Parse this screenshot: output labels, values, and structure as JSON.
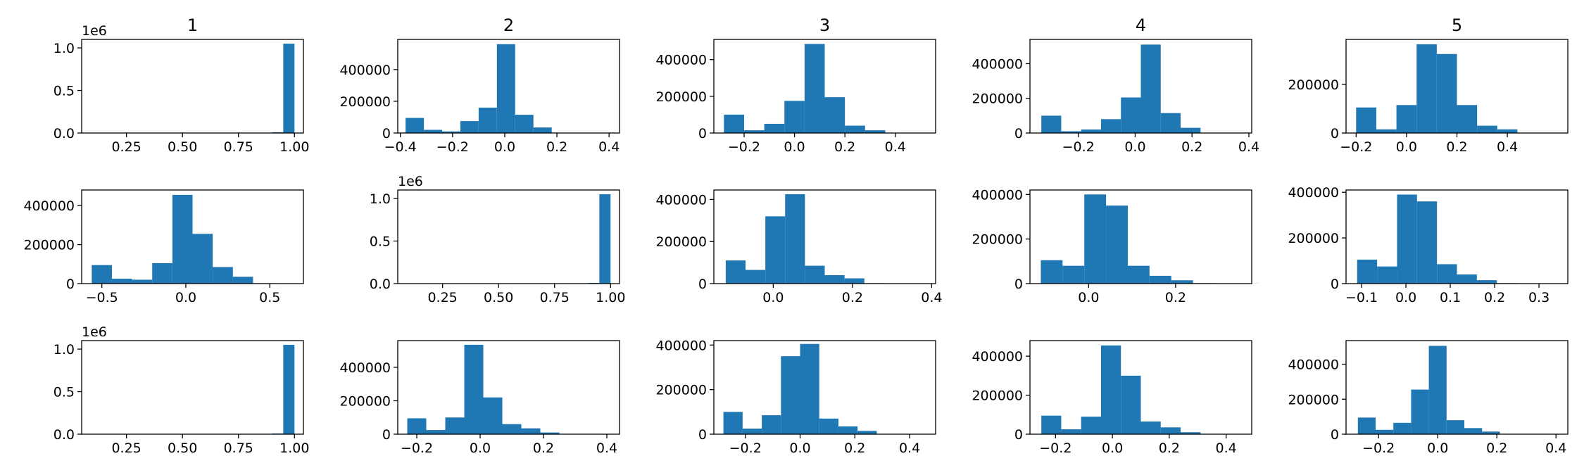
{
  "figure": {
    "columns": [
      "1",
      "2",
      "3",
      "4",
      "5"
    ],
    "bar_color": "#1f77b4",
    "axes_color": "#000000"
  },
  "chart_data": [
    {
      "type": "bar",
      "row": 1,
      "col": 1,
      "title": "1",
      "offset_text": "1e6",
      "bins": [
        [
          0.55,
          0.6
        ],
        [
          0.6,
          0.65
        ],
        [
          0.65,
          0.7
        ],
        [
          0.7,
          0.75
        ],
        [
          0.75,
          0.8
        ],
        [
          0.8,
          0.85
        ],
        [
          0.85,
          0.9
        ],
        [
          0.9,
          0.95
        ],
        [
          0.95,
          1.0
        ]
      ],
      "values": [
        0,
        0,
        0,
        0,
        0,
        0,
        2000,
        8000,
        1050000
      ],
      "xlim": [
        0.05,
        1.04
      ],
      "ylim": [
        0,
        1100000
      ],
      "xticks": [
        0.25,
        0.5,
        0.75,
        1.0
      ],
      "xtick_labels": [
        "0.25",
        "0.50",
        "0.75",
        "1.00"
      ],
      "yticks": [
        0,
        500000,
        1000000
      ],
      "ytick_labels": [
        "0.0",
        "0.5",
        "1.0"
      ]
    },
    {
      "type": "bar",
      "row": 1,
      "col": 2,
      "title": "2",
      "offset_text": "",
      "bins": [
        [
          -0.38,
          -0.31
        ],
        [
          -0.31,
          -0.24
        ],
        [
          -0.24,
          -0.17
        ],
        [
          -0.17,
          -0.1
        ],
        [
          -0.1,
          -0.03
        ],
        [
          -0.03,
          0.04
        ],
        [
          0.04,
          0.11
        ],
        [
          0.11,
          0.18
        ],
        [
          0.18,
          0.25
        ],
        [
          0.25,
          0.32
        ]
      ],
      "values": [
        95000,
        20000,
        10000,
        75000,
        160000,
        560000,
        115000,
        35000,
        2000,
        500
      ],
      "xlim": [
        -0.41,
        0.44
      ],
      "ylim": [
        0,
        590000
      ],
      "xticks": [
        -0.4,
        -0.2,
        0.0,
        0.2,
        0.4
      ],
      "xtick_labels": [
        "−0.4",
        "−0.2",
        "0.0",
        "0.2",
        "0.4"
      ],
      "yticks": [
        0,
        200000,
        400000
      ],
      "ytick_labels": [
        "0",
        "200000",
        "400000"
      ]
    },
    {
      "type": "bar",
      "row": 1,
      "col": 3,
      "title": "3",
      "offset_text": "",
      "bins": [
        [
          -0.28,
          -0.2
        ],
        [
          -0.2,
          -0.12
        ],
        [
          -0.12,
          -0.04
        ],
        [
          -0.04,
          0.04
        ],
        [
          0.04,
          0.12
        ],
        [
          0.12,
          0.2
        ],
        [
          0.2,
          0.28
        ],
        [
          0.28,
          0.36
        ],
        [
          0.36,
          0.44
        ],
        [
          0.44,
          0.52
        ]
      ],
      "values": [
        100000,
        15000,
        50000,
        175000,
        485000,
        195000,
        40000,
        15000,
        1000,
        500
      ],
      "xlim": [
        -0.32,
        0.56
      ],
      "ylim": [
        0,
        510000
      ],
      "xticks": [
        -0.2,
        0.0,
        0.2,
        0.4
      ],
      "xtick_labels": [
        "−0.2",
        "0.0",
        "0.2",
        "0.4"
      ],
      "yticks": [
        0,
        200000,
        400000
      ],
      "ytick_labels": [
        "0",
        "200000",
        "400000"
      ]
    },
    {
      "type": "bar",
      "row": 1,
      "col": 4,
      "title": "4",
      "offset_text": "",
      "bins": [
        [
          -0.33,
          -0.26
        ],
        [
          -0.26,
          -0.19
        ],
        [
          -0.19,
          -0.12
        ],
        [
          -0.12,
          -0.05
        ],
        [
          -0.05,
          0.02
        ],
        [
          0.02,
          0.09
        ],
        [
          0.09,
          0.16
        ],
        [
          0.16,
          0.23
        ],
        [
          0.23,
          0.3
        ],
        [
          0.3,
          0.37
        ]
      ],
      "values": [
        100000,
        10000,
        20000,
        80000,
        205000,
        510000,
        115000,
        30000,
        2000,
        500
      ],
      "xlim": [
        -0.37,
        0.41
      ],
      "ylim": [
        0,
        540000
      ],
      "xticks": [
        -0.2,
        0.0,
        0.2,
        0.4
      ],
      "xtick_labels": [
        "−0.2",
        "0.0",
        "0.2",
        "0.4"
      ],
      "yticks": [
        0,
        200000,
        400000
      ],
      "ytick_labels": [
        "0",
        "200000",
        "400000"
      ]
    },
    {
      "type": "bar",
      "row": 1,
      "col": 5,
      "title": "5",
      "offset_text": "",
      "bins": [
        [
          -0.2,
          -0.12
        ],
        [
          -0.12,
          -0.04
        ],
        [
          -0.04,
          0.04
        ],
        [
          0.04,
          0.12
        ],
        [
          0.12,
          0.2
        ],
        [
          0.2,
          0.28
        ],
        [
          0.28,
          0.36
        ],
        [
          0.36,
          0.44
        ],
        [
          0.44,
          0.52
        ],
        [
          0.52,
          0.6
        ]
      ],
      "values": [
        105000,
        15000,
        115000,
        365000,
        325000,
        115000,
        30000,
        15000,
        1000,
        500
      ],
      "xlim": [
        -0.24,
        0.64
      ],
      "ylim": [
        0,
        385000
      ],
      "xticks": [
        -0.2,
        0.0,
        0.2,
        0.4
      ],
      "xtick_labels": [
        "−0.2",
        "0.0",
        "0.2",
        "0.4"
      ],
      "yticks": [
        0,
        200000
      ],
      "ytick_labels": [
        "0",
        "200000"
      ]
    },
    {
      "type": "bar",
      "row": 2,
      "col": 1,
      "title": "",
      "offset_text": "",
      "bins": [
        [
          -0.56,
          -0.44
        ],
        [
          -0.44,
          -0.32
        ],
        [
          -0.32,
          -0.2
        ],
        [
          -0.2,
          -0.08
        ],
        [
          -0.08,
          0.04
        ],
        [
          0.04,
          0.16
        ],
        [
          0.16,
          0.28
        ],
        [
          0.28,
          0.4
        ],
        [
          0.4,
          0.52
        ],
        [
          0.52,
          0.64
        ]
      ],
      "values": [
        95000,
        25000,
        20000,
        105000,
        455000,
        255000,
        85000,
        35000,
        2000,
        500
      ],
      "xlim": [
        -0.62,
        0.7
      ],
      "ylim": [
        0,
        480000
      ],
      "xticks": [
        -0.5,
        0.0,
        0.5
      ],
      "xtick_labels": [
        "−0.5",
        "0.0",
        "0.5"
      ],
      "yticks": [
        0,
        200000,
        400000
      ],
      "ytick_labels": [
        "0",
        "200000",
        "400000"
      ]
    },
    {
      "type": "bar",
      "row": 2,
      "col": 2,
      "title": "",
      "offset_text": "1e6",
      "bins": [
        [
          0.55,
          0.6
        ],
        [
          0.6,
          0.65
        ],
        [
          0.65,
          0.7
        ],
        [
          0.7,
          0.75
        ],
        [
          0.75,
          0.8
        ],
        [
          0.8,
          0.85
        ],
        [
          0.85,
          0.9
        ],
        [
          0.9,
          0.95
        ],
        [
          0.95,
          1.0
        ]
      ],
      "values": [
        0,
        0,
        0,
        0,
        0,
        0,
        2000,
        8000,
        1050000
      ],
      "xlim": [
        0.05,
        1.04
      ],
      "ylim": [
        0,
        1100000
      ],
      "xticks": [
        0.25,
        0.5,
        0.75,
        1.0
      ],
      "xtick_labels": [
        "0.25",
        "0.50",
        "0.75",
        "1.00"
      ],
      "yticks": [
        0,
        500000,
        1000000
      ],
      "ytick_labels": [
        "0.0",
        "0.5",
        "1.0"
      ]
    },
    {
      "type": "bar",
      "row": 2,
      "col": 3,
      "title": "",
      "offset_text": "",
      "bins": [
        [
          -0.12,
          -0.07
        ],
        [
          -0.07,
          -0.02
        ],
        [
          -0.02,
          0.03
        ],
        [
          0.03,
          0.08
        ],
        [
          0.08,
          0.13
        ],
        [
          0.13,
          0.18
        ],
        [
          0.18,
          0.23
        ],
        [
          0.23,
          0.28
        ],
        [
          0.28,
          0.33
        ],
        [
          0.33,
          0.38
        ]
      ],
      "values": [
        110000,
        65000,
        320000,
        425000,
        85000,
        40000,
        25000,
        2000,
        1000,
        500
      ],
      "xlim": [
        -0.15,
        0.41
      ],
      "ylim": [
        0,
        445000
      ],
      "xticks": [
        0.0,
        0.2,
        0.4
      ],
      "xtick_labels": [
        "0.0",
        "0.2",
        "0.4"
      ],
      "yticks": [
        0,
        200000,
        400000
      ],
      "ytick_labels": [
        "0",
        "200000",
        "400000"
      ]
    },
    {
      "type": "bar",
      "row": 2,
      "col": 4,
      "title": "",
      "offset_text": "",
      "bins": [
        [
          -0.11,
          -0.06
        ],
        [
          -0.06,
          -0.01
        ],
        [
          -0.01,
          0.04
        ],
        [
          0.04,
          0.09
        ],
        [
          0.09,
          0.14
        ],
        [
          0.14,
          0.19
        ],
        [
          0.19,
          0.24
        ],
        [
          0.24,
          0.29
        ],
        [
          0.29,
          0.34
        ],
        [
          0.34,
          0.39
        ]
      ],
      "values": [
        105000,
        80000,
        400000,
        350000,
        80000,
        35000,
        15000,
        2000,
        1000,
        500
      ],
      "xlim": [
        -0.135,
        0.375
      ],
      "ylim": [
        0,
        420000
      ],
      "xticks": [
        0.0,
        0.2
      ],
      "xtick_labels": [
        "0.0",
        "0.2"
      ],
      "yticks": [
        0,
        200000,
        400000
      ],
      "ytick_labels": [
        "0",
        "200000",
        "400000"
      ]
    },
    {
      "type": "bar",
      "row": 2,
      "col": 5,
      "title": "",
      "offset_text": "",
      "bins": [
        [
          -0.11,
          -0.065
        ],
        [
          -0.065,
          -0.02
        ],
        [
          -0.02,
          0.025
        ],
        [
          0.025,
          0.07
        ],
        [
          0.07,
          0.115
        ],
        [
          0.115,
          0.16
        ],
        [
          0.16,
          0.205
        ],
        [
          0.205,
          0.25
        ],
        [
          0.25,
          0.295
        ],
        [
          0.295,
          0.34
        ]
      ],
      "values": [
        105000,
        75000,
        390000,
        360000,
        85000,
        40000,
        15000,
        2000,
        1000,
        500
      ],
      "xlim": [
        -0.135,
        0.365
      ],
      "ylim": [
        0,
        410000
      ],
      "xticks": [
        -0.1,
        0.0,
        0.1,
        0.2,
        0.3
      ],
      "xtick_labels": [
        "−0.1",
        "0.0",
        "0.1",
        "0.2",
        "0.3"
      ],
      "yticks": [
        0,
        200000,
        400000
      ],
      "ytick_labels": [
        "0",
        "200000",
        "400000"
      ]
    },
    {
      "type": "bar",
      "row": 3,
      "col": 1,
      "title": "",
      "offset_text": "1e6",
      "bins": [
        [
          0.55,
          0.6
        ],
        [
          0.6,
          0.65
        ],
        [
          0.65,
          0.7
        ],
        [
          0.7,
          0.75
        ],
        [
          0.75,
          0.8
        ],
        [
          0.8,
          0.85
        ],
        [
          0.85,
          0.9
        ],
        [
          0.9,
          0.95
        ],
        [
          0.95,
          1.0
        ]
      ],
      "values": [
        0,
        0,
        0,
        0,
        0,
        0,
        2000,
        8000,
        1050000
      ],
      "xlim": [
        0.05,
        1.04
      ],
      "ylim": [
        0,
        1100000
      ],
      "xticks": [
        0.25,
        0.5,
        0.75,
        1.0
      ],
      "xtick_labels": [
        "0.25",
        "0.50",
        "0.75",
        "1.00"
      ],
      "yticks": [
        0,
        500000,
        1000000
      ],
      "ytick_labels": [
        "0.0",
        "0.5",
        "1.0"
      ]
    },
    {
      "type": "bar",
      "row": 3,
      "col": 2,
      "title": "",
      "offset_text": "",
      "bins": [
        [
          -0.23,
          -0.17
        ],
        [
          -0.17,
          -0.11
        ],
        [
          -0.11,
          -0.05
        ],
        [
          -0.05,
          0.01
        ],
        [
          0.01,
          0.07
        ],
        [
          0.07,
          0.13
        ],
        [
          0.13,
          0.19
        ],
        [
          0.19,
          0.25
        ],
        [
          0.25,
          0.31
        ],
        [
          0.31,
          0.37
        ]
      ],
      "values": [
        95000,
        25000,
        100000,
        535000,
        220000,
        60000,
        35000,
        10000,
        1000,
        500
      ],
      "xlim": [
        -0.26,
        0.44
      ],
      "ylim": [
        0,
        560000
      ],
      "xticks": [
        -0.2,
        0.0,
        0.2,
        0.4
      ],
      "xtick_labels": [
        "−0.2",
        "0.0",
        "0.2",
        "0.4"
      ],
      "yticks": [
        0,
        200000,
        400000
      ],
      "ytick_labels": [
        "0",
        "200000",
        "400000"
      ]
    },
    {
      "type": "bar",
      "row": 3,
      "col": 3,
      "title": "",
      "offset_text": "",
      "bins": [
        [
          -0.28,
          -0.21
        ],
        [
          -0.21,
          -0.14
        ],
        [
          -0.14,
          -0.07
        ],
        [
          -0.07,
          0.0
        ],
        [
          0.0,
          0.07
        ],
        [
          0.07,
          0.14
        ],
        [
          0.14,
          0.21
        ],
        [
          0.21,
          0.28
        ],
        [
          0.28,
          0.35
        ],
        [
          0.35,
          0.42
        ]
      ],
      "values": [
        100000,
        25000,
        85000,
        350000,
        405000,
        70000,
        35000,
        15000,
        1000,
        500
      ],
      "xlim": [
        -0.315,
        0.495
      ],
      "ylim": [
        0,
        420000
      ],
      "xticks": [
        -0.2,
        0.0,
        0.2,
        0.4
      ],
      "xtick_labels": [
        "−0.2",
        "0.0",
        "0.2",
        "0.4"
      ],
      "yticks": [
        0,
        200000,
        400000
      ],
      "ytick_labels": [
        "0",
        "200000",
        "400000"
      ]
    },
    {
      "type": "bar",
      "row": 3,
      "col": 4,
      "title": "",
      "offset_text": "",
      "bins": [
        [
          -0.25,
          -0.18
        ],
        [
          -0.18,
          -0.11
        ],
        [
          -0.11,
          -0.04
        ],
        [
          -0.04,
          0.03
        ],
        [
          0.03,
          0.1
        ],
        [
          0.1,
          0.17
        ],
        [
          0.17,
          0.24
        ],
        [
          0.24,
          0.31
        ],
        [
          0.31,
          0.38
        ],
        [
          0.38,
          0.45
        ]
      ],
      "values": [
        95000,
        25000,
        90000,
        455000,
        300000,
        65000,
        35000,
        10000,
        1000,
        500
      ],
      "xlim": [
        -0.29,
        0.49
      ],
      "ylim": [
        0,
        480000
      ],
      "xticks": [
        -0.2,
        0.0,
        0.2,
        0.4
      ],
      "xtick_labels": [
        "−0.2",
        "0.0",
        "0.2",
        "0.4"
      ],
      "yticks": [
        0,
        200000,
        400000
      ],
      "ytick_labels": [
        "0",
        "200000",
        "400000"
      ]
    },
    {
      "type": "bar",
      "row": 3,
      "col": 5,
      "title": "",
      "offset_text": "",
      "bins": [
        [
          -0.27,
          -0.21
        ],
        [
          -0.21,
          -0.15
        ],
        [
          -0.15,
          -0.09
        ],
        [
          -0.09,
          -0.03
        ],
        [
          -0.03,
          0.03
        ],
        [
          0.03,
          0.09
        ],
        [
          0.09,
          0.15
        ],
        [
          0.15,
          0.21
        ],
        [
          0.21,
          0.27
        ],
        [
          0.27,
          0.33
        ]
      ],
      "values": [
        95000,
        25000,
        65000,
        255000,
        505000,
        80000,
        35000,
        15000,
        1000,
        500
      ],
      "xlim": [
        -0.31,
        0.44
      ],
      "ylim": [
        0,
        535000
      ],
      "xticks": [
        -0.2,
        0.0,
        0.2,
        0.4
      ],
      "xtick_labels": [
        "−0.2",
        "0.0",
        "0.2",
        "0.4"
      ],
      "yticks": [
        0,
        200000,
        400000
      ],
      "ytick_labels": [
        "0",
        "200000",
        "400000"
      ]
    }
  ]
}
